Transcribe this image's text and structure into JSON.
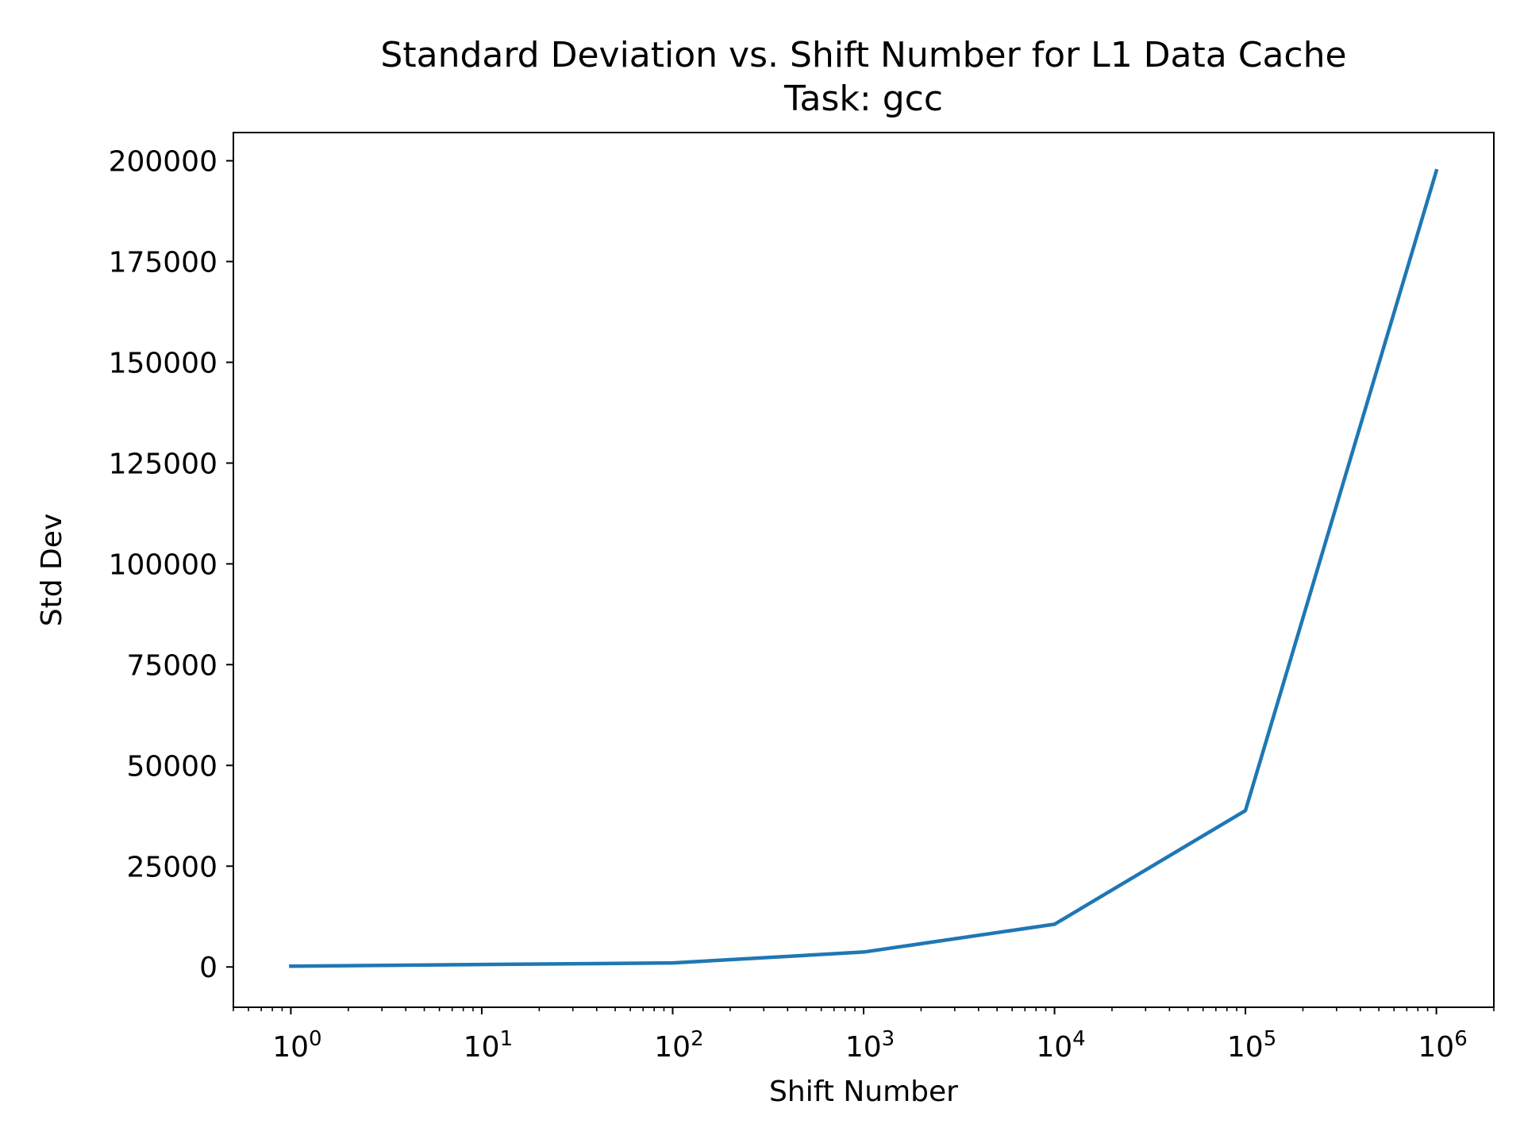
{
  "chart_data": {
    "type": "line",
    "title": "Standard Deviation vs. Shift Number for L1 Data Cache",
    "subtitle": "Task: gcc",
    "xlabel": "Shift Number",
    "ylabel": "Std Dev",
    "x_scale": "log",
    "xlim": [
      0.5,
      2000000
    ],
    "ylim": [
      -10000,
      207000
    ],
    "grid": false,
    "x_ticks": [
      {
        "value": 1,
        "base": "10",
        "exp": "0"
      },
      {
        "value": 10,
        "base": "10",
        "exp": "1"
      },
      {
        "value": 100,
        "base": "10",
        "exp": "2"
      },
      {
        "value": 1000,
        "base": "10",
        "exp": "3"
      },
      {
        "value": 10000,
        "base": "10",
        "exp": "4"
      },
      {
        "value": 100000,
        "base": "10",
        "exp": "5"
      },
      {
        "value": 1000000,
        "base": "10",
        "exp": "6"
      }
    ],
    "y_ticks": [
      {
        "value": 0,
        "label": "0"
      },
      {
        "value": 25000,
        "label": "25000"
      },
      {
        "value": 50000,
        "label": "50000"
      },
      {
        "value": 75000,
        "label": "75000"
      },
      {
        "value": 100000,
        "label": "100000"
      },
      {
        "value": 125000,
        "label": "125000"
      },
      {
        "value": 150000,
        "label": "150000"
      },
      {
        "value": 175000,
        "label": "175000"
      },
      {
        "value": 200000,
        "label": "200000"
      }
    ],
    "series": [
      {
        "color": "#1f77b4",
        "x": [
          1,
          10,
          100,
          1000,
          10000,
          100000,
          1000000
        ],
        "y": [
          200,
          600,
          1000,
          3700,
          10600,
          38800,
          197500
        ]
      }
    ]
  }
}
